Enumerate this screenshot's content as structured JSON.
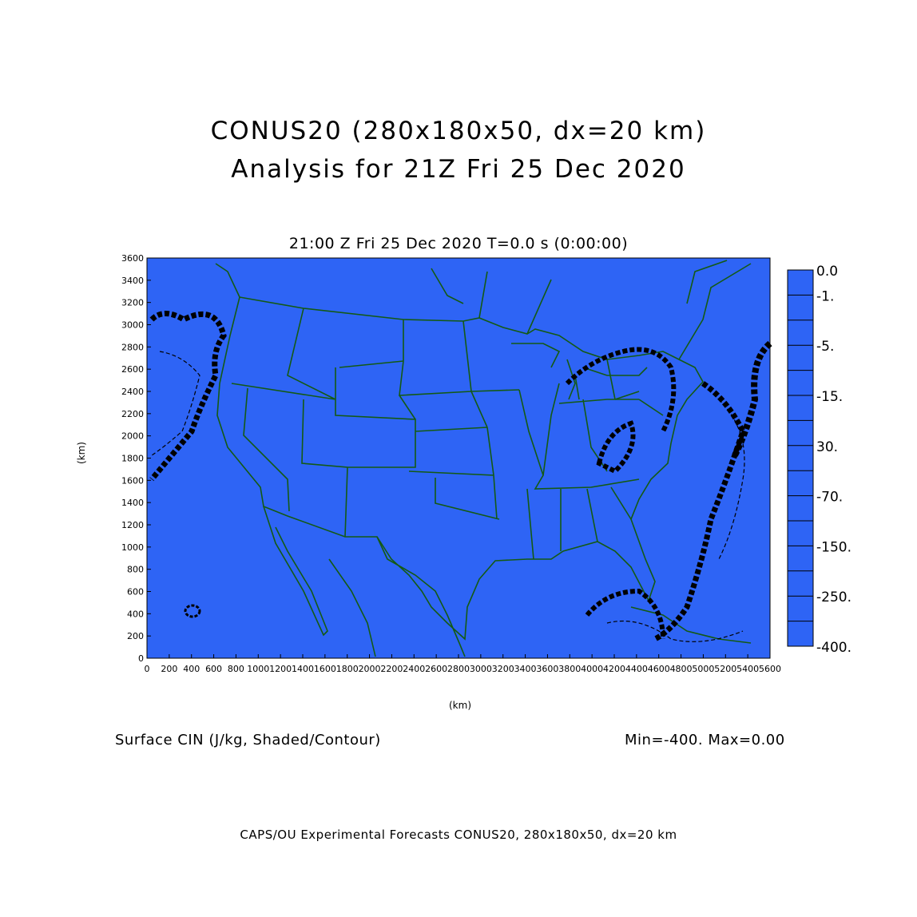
{
  "title_line1": "CONUS20 (280x180x50, dx=20 km)",
  "title_line2": "Analysis for 21Z Fri 25 Dec 2020",
  "plot_subtitle": "21:00 Z Fri 25 Dec 2020    T=0.0 s (0:00:00)",
  "field_caption": "Surface CIN (J/kg, Shaded/Contour)",
  "min_max": "Min=-400. Max=0.00",
  "footer": "CAPS/OU Experimental Forecasts  CONUS20, 280x180x50, dx=20 km",
  "colors": {
    "shade": "#2e64f5",
    "boundaries": "#145a14",
    "contours": "#000000"
  },
  "chart_data": {
    "type": "heatmap",
    "xlabel": "(km)",
    "ylabel": "(km)",
    "xlim": [
      0,
      5600
    ],
    "ylim": [
      0,
      3600
    ],
    "x_ticks": [
      0,
      200,
      400,
      600,
      800,
      1000,
      1200,
      1400,
      1600,
      1800,
      2000,
      2200,
      2400,
      2600,
      2800,
      3000,
      3200,
      3400,
      3600,
      3800,
      4000,
      4200,
      4400,
      4600,
      4800,
      5000,
      5200,
      5400,
      5600
    ],
    "y_ticks": [
      0,
      200,
      400,
      600,
      800,
      1000,
      1200,
      1400,
      1600,
      1800,
      2000,
      2200,
      2400,
      2600,
      2800,
      3000,
      3200,
      3400,
      3600
    ],
    "x_tick_labels": [
      "0",
      "200",
      "400",
      "600",
      "800",
      "1000",
      "1200",
      "1400",
      "1600",
      "1800",
      "2000",
      "2200",
      "2400",
      "2600",
      "2800",
      "3000",
      "3200",
      "3400",
      "3600",
      "3800",
      "4000",
      "4200",
      "4400",
      "4600",
      "4800",
      "5000",
      "5200",
      "5400",
      "5600"
    ],
    "y_tick_labels": [
      "0",
      "200",
      "400",
      "600",
      "800",
      "1000",
      "1200",
      "1400",
      "1600",
      "1800",
      "2000",
      "2200",
      "2400",
      "2600",
      "2800",
      "3000",
      "3200",
      "3400",
      "3600"
    ],
    "colorbar_levels": [
      "0.0",
      "-1.",
      "-5.",
      "-15.",
      "30.",
      "-70.",
      "-150.",
      "-250.",
      "-400."
    ],
    "colorbar_label_steps": [
      0,
      1,
      3,
      5,
      7,
      9,
      11,
      13,
      15
    ],
    "colorbar_steps": 15,
    "field_min": -400,
    "field_max": 0.0
  }
}
